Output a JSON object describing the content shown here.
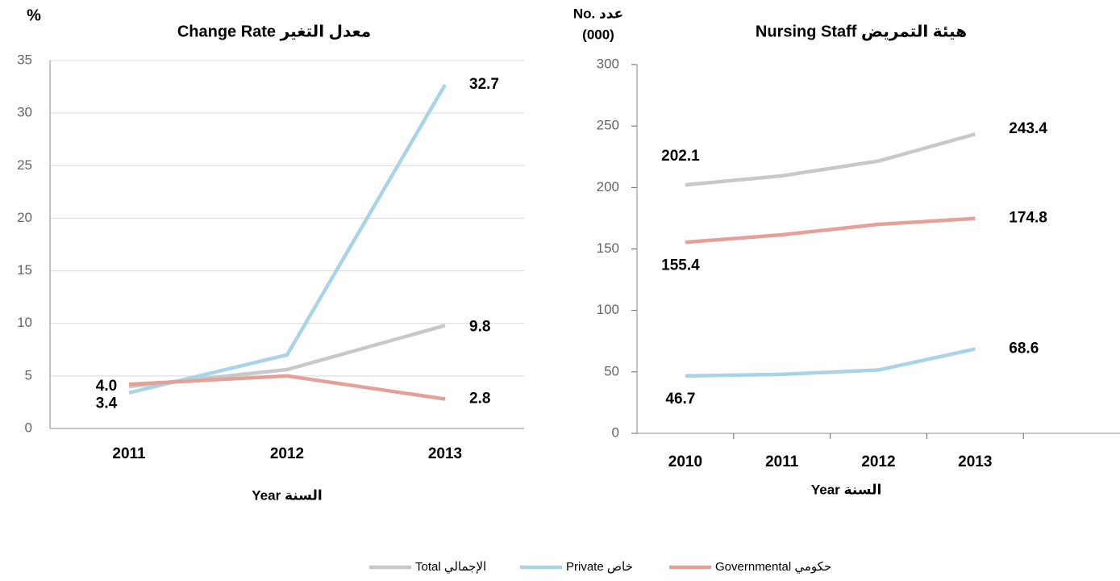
{
  "chart_data": [
    {
      "type": "line",
      "title": "Change Rate معدل التغير",
      "ylabel": "%",
      "xlabel": "Year السنة",
      "categories": [
        "2011",
        "2012",
        "2013"
      ],
      "series": [
        {
          "name": "Total الإجمالي",
          "color": "#c8c8c8",
          "values": [
            4.0,
            5.6,
            9.8
          ],
          "value_labels": [
            "4.0",
            null,
            "9.8"
          ]
        },
        {
          "name": "Private خاص",
          "color": "#a9d3e6",
          "values": [
            3.4,
            7.0,
            32.7
          ],
          "value_labels": [
            "3.4",
            null,
            "32.7"
          ]
        },
        {
          "name": "Governmental حكومي",
          "color": "#e4a198",
          "values": [
            4.2,
            5.0,
            2.8
          ],
          "value_labels": [
            null,
            null,
            "2.8"
          ]
        }
      ],
      "ylim": [
        0,
        35
      ],
      "yticks": [
        0,
        5,
        10,
        15,
        20,
        25,
        30,
        35
      ],
      "grid": true
    },
    {
      "type": "line",
      "title": "Nursing Staff  هيئة التمريض",
      "ylabel": [
        "No. عدد",
        "(000)"
      ],
      "xlabel": "Year السنة",
      "categories": [
        "2010",
        "2011",
        "2012",
        "2013"
      ],
      "series": [
        {
          "name": "Total الإجمالي",
          "color": "#c8c8c8",
          "values": [
            202.1,
            209.5,
            221.5,
            243.4
          ],
          "value_labels": [
            "202.1",
            null,
            null,
            "243.4"
          ]
        },
        {
          "name": "Private خاص",
          "color": "#a9d3e6",
          "values": [
            46.7,
            48.0,
            51.5,
            68.6
          ],
          "value_labels": [
            "46.7",
            null,
            null,
            "68.6"
          ]
        },
        {
          "name": "Governmental حكومي",
          "color": "#e4a198",
          "values": [
            155.4,
            161.5,
            170.0,
            174.8
          ],
          "value_labels": [
            "155.4",
            null,
            null,
            "174.8"
          ]
        }
      ],
      "ylim": [
        0,
        300
      ],
      "yticks": [
        0,
        50,
        100,
        150,
        200,
        250,
        300
      ],
      "grid": false
    }
  ]
}
